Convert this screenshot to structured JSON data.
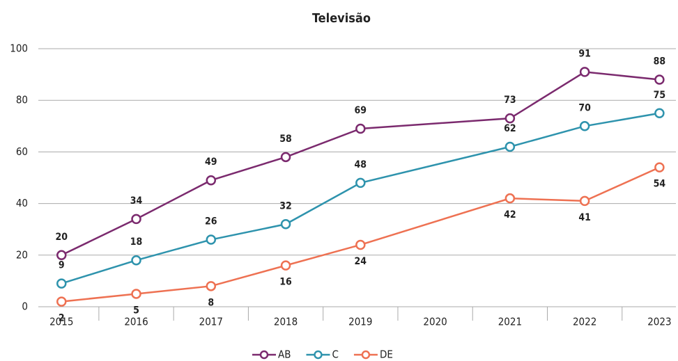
{
  "chart_data": {
    "type": "line",
    "title": "Televisão",
    "x": [
      2015,
      2016,
      2017,
      2018,
      2019,
      2021,
      2022,
      2023
    ],
    "series": [
      {
        "name": "AB",
        "color": "#7b2a6e",
        "values": [
          20,
          34,
          49,
          58,
          69,
          73,
          91,
          88
        ]
      },
      {
        "name": "C",
        "color": "#2e93ad",
        "values": [
          9,
          18,
          26,
          32,
          48,
          62,
          70,
          75
        ]
      },
      {
        "name": "DE",
        "color": "#ee7152",
        "values": [
          2,
          5,
          8,
          16,
          24,
          42,
          41,
          54
        ]
      }
    ],
    "xlim": [
      2014.69,
      2023.22
    ],
    "xticks": [
      2015,
      2016,
      2017,
      2018,
      2019,
      2020,
      2021,
      2022,
      2023
    ],
    "ylim": [
      0,
      100
    ],
    "yticks": [
      0,
      20,
      40,
      60,
      80,
      100
    ],
    "grid": true,
    "legend": "bottom"
  }
}
